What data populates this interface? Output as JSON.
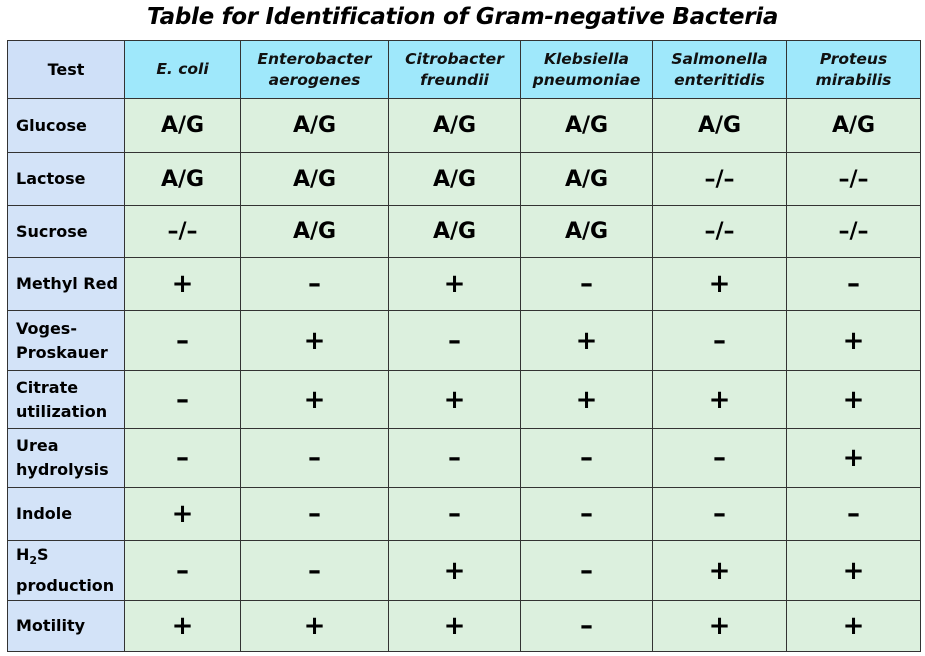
{
  "title": "Table for Identification of Gram-negative Bacteria",
  "header": {
    "test": "Test",
    "species": [
      [
        "E. coli"
      ],
      [
        "Enterobacter",
        "aerogenes"
      ],
      [
        "Citrobacter",
        "freundii"
      ],
      [
        "Klebsiella",
        "pneumoniae"
      ],
      [
        "Salmonella",
        "enteritidis"
      ],
      [
        "Proteus",
        "mirabilis"
      ]
    ]
  },
  "colors": {
    "header_test": "#cfe0f8",
    "header_species": "#9fe8fb",
    "row_label": "#d3e3f8",
    "cell": "#dcf0de",
    "border": "#333333"
  },
  "rows": [
    {
      "label": [
        "Glucose"
      ],
      "values": [
        "A/G",
        "A/G",
        "A/G",
        "A/G",
        "A/G",
        "A/G"
      ]
    },
    {
      "label": [
        "Lactose"
      ],
      "values": [
        "A/G",
        "A/G",
        "A/G",
        "A/G",
        "–/–",
        "–/–"
      ]
    },
    {
      "label": [
        "Sucrose"
      ],
      "values": [
        "–/–",
        "A/G",
        "A/G",
        "A/G",
        "–/–",
        "–/–"
      ]
    },
    {
      "label": [
        "Methyl Red"
      ],
      "values": [
        "+",
        "–",
        "+",
        "–",
        "+",
        "–"
      ]
    },
    {
      "label": [
        "Voges-",
        "Proskauer"
      ],
      "values": [
        "–",
        "+",
        "–",
        "+",
        "–",
        "+"
      ]
    },
    {
      "label": [
        "Citrate",
        "utilization"
      ],
      "values": [
        "–",
        "+",
        "+",
        "+",
        "+",
        "+"
      ]
    },
    {
      "label": [
        "Urea",
        "hydrolysis"
      ],
      "values": [
        "–",
        "–",
        "–",
        "–",
        "–",
        "+"
      ]
    },
    {
      "label": [
        "Indole"
      ],
      "values": [
        "+",
        "–",
        "–",
        "–",
        "–",
        "–"
      ]
    },
    {
      "label": [
        "H",
        "2",
        "S",
        "production"
      ],
      "values": [
        "–",
        "–",
        "+",
        "–",
        "+",
        "+"
      ]
    },
    {
      "label": [
        "Motility"
      ],
      "values": [
        "+",
        "+",
        "+",
        "–",
        "+",
        "+"
      ]
    }
  ]
}
